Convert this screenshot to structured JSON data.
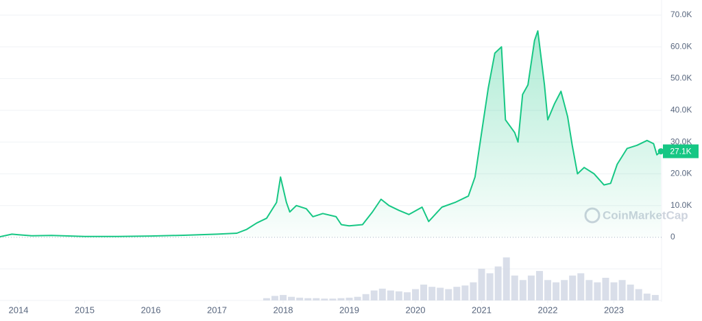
{
  "chart_data": {
    "type": "area",
    "color": "#16c784",
    "xlim": [
      2013.72,
      2023.72
    ],
    "xticks": [
      2014,
      2015,
      2016,
      2017,
      2018,
      2019,
      2020,
      2021,
      2022,
      2023
    ],
    "ylim": [
      0,
      70000
    ],
    "yticks": [
      0,
      {
        "value": 10000,
        "label": "10.0K"
      },
      {
        "value": 20000,
        "label": "20.0K"
      },
      {
        "value": 30000,
        "label": "30.0K"
      },
      {
        "value": 40000,
        "label": "40.0K"
      },
      {
        "value": 50000,
        "label": "50.0K"
      },
      {
        "value": 60000,
        "label": "60.0K"
      },
      {
        "value": 70000,
        "label": "70.0K"
      }
    ],
    "grid": true,
    "x": [
      2013.72,
      2013.9,
      2014.0,
      2014.2,
      2014.5,
      2015.0,
      2015.5,
      2016.0,
      2016.5,
      2017.0,
      2017.3,
      2017.45,
      2017.6,
      2017.75,
      2017.9,
      2017.96,
      2018.05,
      2018.1,
      2018.2,
      2018.35,
      2018.45,
      2018.6,
      2018.8,
      2018.88,
      2019.0,
      2019.2,
      2019.35,
      2019.48,
      2019.6,
      2019.75,
      2019.9,
      2020.1,
      2020.2,
      2020.4,
      2020.6,
      2020.8,
      2020.9,
      2021.0,
      2021.1,
      2021.2,
      2021.3,
      2021.36,
      2021.5,
      2021.55,
      2021.62,
      2021.7,
      2021.8,
      2021.85,
      2021.95,
      2022.0,
      2022.1,
      2022.2,
      2022.3,
      2022.37,
      2022.45,
      2022.55,
      2022.7,
      2022.85,
      2022.95,
      2023.05,
      2023.2,
      2023.35,
      2023.5,
      2023.6,
      2023.65,
      2023.71
    ],
    "values": [
      200,
      1000,
      800,
      500,
      600,
      250,
      250,
      400,
      650,
      1000,
      1300,
      2500,
      4500,
      6000,
      11000,
      19000,
      11000,
      8000,
      10000,
      9000,
      6500,
      7500,
      6500,
      4000,
      3600,
      4000,
      8000,
      12000,
      10000,
      8500,
      7200,
      9500,
      5000,
      9500,
      11000,
      13000,
      19000,
      33000,
      47000,
      58000,
      60000,
      37000,
      33000,
      30000,
      45000,
      48000,
      62000,
      65000,
      48000,
      37000,
      42000,
      46000,
      38000,
      29000,
      20000,
      22000,
      20000,
      16500,
      17000,
      23000,
      28000,
      29000,
      30500,
      29500,
      26000,
      27100
    ],
    "current_price": {
      "value": 27100,
      "label": "27.1K"
    },
    "watermark": "CoinMarketCap",
    "volume": {
      "color": "#cfd6e4",
      "ylim": [
        0,
        100
      ],
      "x": [
        2017.75,
        2017.875,
        2018.0,
        2018.125,
        2018.25,
        2018.375,
        2018.5,
        2018.625,
        2018.75,
        2018.875,
        2019.0,
        2019.125,
        2019.25,
        2019.375,
        2019.5,
        2019.625,
        2019.75,
        2019.875,
        2020.0,
        2020.125,
        2020.25,
        2020.375,
        2020.5,
        2020.625,
        2020.75,
        2020.875,
        2021.0,
        2021.125,
        2021.25,
        2021.375,
        2021.5,
        2021.625,
        2021.75,
        2021.875,
        2022.0,
        2022.125,
        2022.25,
        2022.375,
        2022.5,
        2022.625,
        2022.75,
        2022.875,
        2023.0,
        2023.125,
        2023.25,
        2023.375,
        2023.5,
        2023.625
      ],
      "values": [
        5,
        10,
        12,
        8,
        6,
        5,
        5,
        4,
        4,
        5,
        6,
        8,
        14,
        22,
        26,
        22,
        20,
        18,
        25,
        35,
        30,
        28,
        25,
        30,
        33,
        40,
        70,
        60,
        75,
        95,
        55,
        45,
        55,
        65,
        45,
        40,
        45,
        55,
        60,
        45,
        40,
        50,
        40,
        45,
        35,
        25,
        15,
        12
      ]
    }
  }
}
